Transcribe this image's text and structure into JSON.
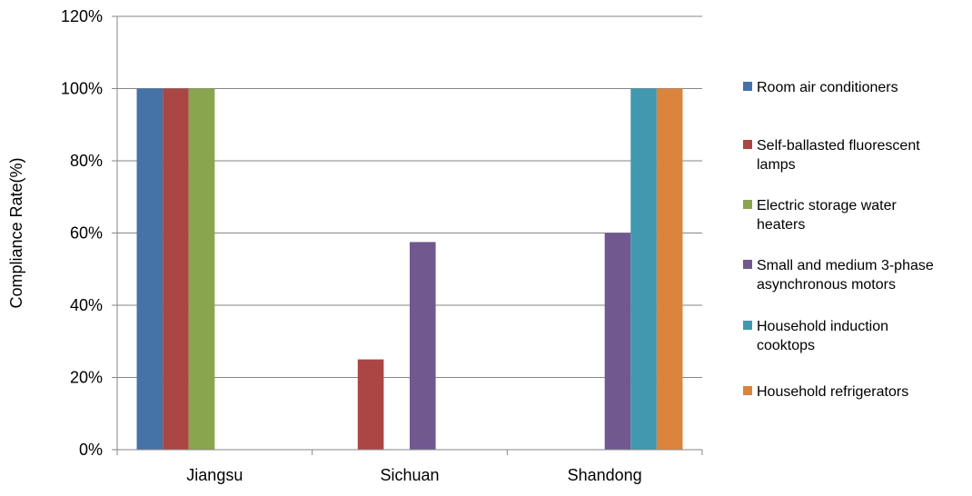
{
  "chart_data": {
    "type": "bar",
    "title": "",
    "xlabel": "",
    "ylabel": "Compliance Rate(%)",
    "ylim": [
      0,
      120
    ],
    "yticks": [
      "0%",
      "20%",
      "40%",
      "60%",
      "80%",
      "100%",
      "120%"
    ],
    "grid": true,
    "legend_position": "right",
    "categories": [
      "Jiangsu",
      "Sichuan",
      "Shandong"
    ],
    "series": [
      {
        "name": "Room air conditioners",
        "legend_lines": [
          "Room air conditioners"
        ],
        "color": "#4572A7",
        "values": [
          100,
          null,
          null
        ]
      },
      {
        "name": "Self-ballasted fluorescent lamps",
        "legend_lines": [
          "Self-ballasted fluorescent",
          "lamps"
        ],
        "color": "#AA4643",
        "values": [
          100,
          25,
          null
        ]
      },
      {
        "name": "Electric storage water heaters",
        "legend_lines": [
          "Electric storage water",
          "heaters"
        ],
        "color": "#89A54E",
        "values": [
          100,
          null,
          null
        ]
      },
      {
        "name": "Small and medium 3-phase asynchronous motors",
        "legend_lines": [
          "Small and medium 3-phase",
          "asynchronous motors"
        ],
        "color": "#71588F",
        "values": [
          null,
          57.5,
          60
        ]
      },
      {
        "name": "Household induction cooktops",
        "legend_lines": [
          "Household induction",
          "cooktops"
        ],
        "color": "#4198AF",
        "values": [
          null,
          null,
          100
        ]
      },
      {
        "name": "Household refrigerators",
        "legend_lines": [
          "Household refrigerators"
        ],
        "color": "#DB843D",
        "values": [
          null,
          null,
          100
        ]
      }
    ]
  }
}
